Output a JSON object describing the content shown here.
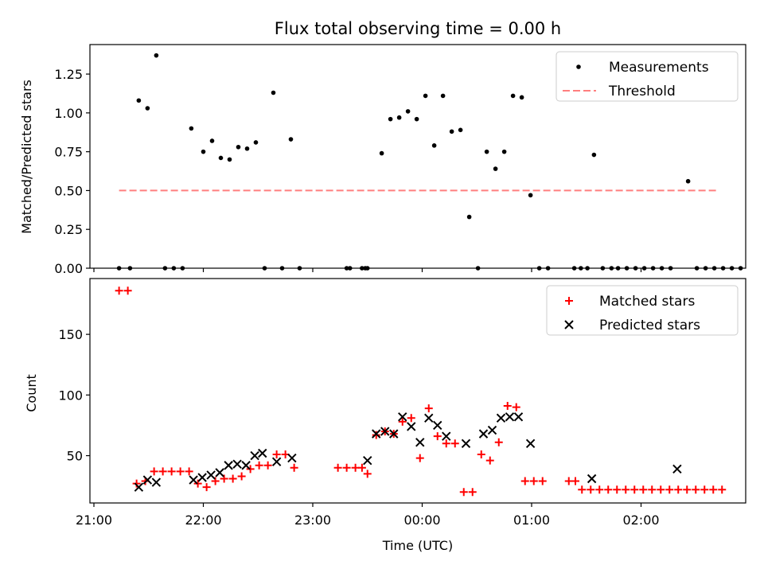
{
  "figure": {
    "title": "Flux total observing time = 0.00 h",
    "xlabel": "Time (UTC)",
    "x_ticks": [
      "21:00",
      "22:00",
      "23:00",
      "00:00",
      "01:00",
      "02:00"
    ]
  },
  "chart_data": [
    {
      "type": "scatter",
      "title": "Flux total observing time = 0.00 h",
      "ylabel": "Matched/Predicted stars",
      "x_unit": "hours since 21:00 UTC",
      "ylim": [
        0,
        1.44
      ],
      "y_ticks": [
        "0.00",
        "0.25",
        "0.50",
        "0.75",
        "1.00",
        "1.25"
      ],
      "legend": {
        "location": "upper right",
        "entries": [
          "Measurements",
          "Threshold"
        ]
      },
      "series": [
        {
          "name": "Measurements",
          "marker": "dot",
          "color": "#000000",
          "x": [
            0.23,
            0.33,
            0.41,
            0.49,
            0.57,
            0.65,
            0.73,
            0.81,
            0.89,
            1.0,
            1.08,
            1.16,
            1.24,
            1.32,
            1.4,
            1.48,
            1.56,
            1.64,
            1.72,
            1.8,
            1.88,
            2.31,
            2.34,
            2.45,
            2.48,
            2.5,
            2.63,
            2.71,
            2.79,
            2.87,
            2.95,
            3.03,
            3.11,
            3.19,
            3.27,
            3.35,
            3.43,
            3.51,
            3.59,
            3.67,
            3.75,
            3.83,
            3.91,
            3.99,
            4.07,
            4.15,
            4.39,
            4.45,
            4.51,
            4.57,
            4.65,
            4.73,
            4.79,
            4.87,
            4.95,
            5.03,
            5.11,
            5.19,
            5.27,
            5.43,
            5.51,
            5.59,
            5.67,
            5.75,
            5.83,
            5.91
          ],
          "y": [
            0.0,
            0.0,
            1.08,
            1.03,
            1.37,
            0.0,
            0.0,
            0.0,
            0.9,
            0.75,
            0.82,
            0.71,
            0.7,
            0.78,
            0.77,
            0.81,
            0.0,
            1.13,
            0.0,
            0.83,
            0.0,
            0.0,
            0.0,
            0.0,
            0.0,
            0.0,
            0.74,
            0.96,
            0.97,
            1.01,
            0.96,
            1.11,
            0.79,
            1.11,
            0.88,
            0.89,
            0.33,
            0.0,
            0.75,
            0.64,
            0.75,
            1.11,
            1.1,
            0.47,
            0.0,
            0.0,
            0.0,
            0.0,
            0.0,
            0.73,
            0.0,
            0.0,
            0.0,
            0.0,
            0.0,
            0.0,
            0.0,
            0.0,
            0.0,
            0.56,
            0.0,
            0.0,
            0.0,
            0.0,
            0.0,
            0.0
          ]
        },
        {
          "name": "Threshold",
          "marker": "dashed-line",
          "color": "#ff7f7f",
          "x": [
            0.23,
            5.7
          ],
          "y": [
            0.5,
            0.5
          ]
        }
      ]
    },
    {
      "type": "scatter",
      "ylabel": "Count",
      "xlabel": "Time (UTC)",
      "x_unit": "hours since 21:00 UTC",
      "ylim": [
        11,
        196
      ],
      "y_ticks": [
        "50",
        "100",
        "150"
      ],
      "legend": {
        "location": "upper right",
        "entries": [
          "Matched stars",
          "Predicted stars"
        ]
      },
      "series": [
        {
          "name": "Matched stars",
          "marker": "plus",
          "color": "#ff0000",
          "x": [
            0.23,
            0.31,
            0.39,
            0.47,
            0.55,
            0.63,
            0.71,
            0.79,
            0.87,
            0.95,
            1.03,
            1.11,
            1.19,
            1.27,
            1.35,
            1.43,
            1.51,
            1.59,
            1.67,
            1.75,
            1.83,
            2.23,
            2.31,
            2.39,
            2.45,
            2.5,
            2.58,
            2.66,
            2.74,
            2.82,
            2.9,
            2.98,
            3.06,
            3.14,
            3.22,
            3.3,
            3.38,
            3.46,
            3.54,
            3.62,
            3.7,
            3.78,
            3.86,
            3.94,
            4.02,
            4.1,
            4.34,
            4.4,
            4.46,
            4.54,
            4.62,
            4.7,
            4.78,
            4.86,
            4.94,
            5.02,
            5.1,
            5.18,
            5.26,
            5.34,
            5.42,
            5.5,
            5.58,
            5.66,
            5.74
          ],
          "y": [
            186,
            186,
            27,
            29,
            37,
            37,
            37,
            37,
            37,
            27,
            24,
            29,
            31,
            31,
            33,
            39,
            42,
            42,
            51,
            51,
            40,
            40,
            40,
            40,
            40,
            35,
            67,
            70,
            68,
            78,
            81,
            48,
            89,
            66,
            60,
            60,
            20,
            20,
            51,
            46,
            61,
            91,
            90,
            29,
            29,
            29,
            29,
            29,
            22,
            22,
            22,
            22,
            22,
            22,
            22,
            22,
            22,
            22,
            22,
            22,
            22,
            22,
            22,
            22,
            22
          ]
        },
        {
          "name": "Predicted stars",
          "marker": "x",
          "color": "#000000",
          "x": [
            0.41,
            0.49,
            0.57,
            0.91,
            0.99,
            1.07,
            1.15,
            1.23,
            1.31,
            1.39,
            1.47,
            1.54,
            1.67,
            1.81,
            2.5,
            2.58,
            2.66,
            2.74,
            2.82,
            2.9,
            2.98,
            3.06,
            3.14,
            3.22,
            3.4,
            3.56,
            3.64,
            3.72,
            3.8,
            3.88,
            3.99,
            4.55,
            5.33
          ],
          "y": [
            24,
            30,
            28,
            30,
            32,
            34,
            36,
            42,
            43,
            42,
            50,
            52,
            45,
            48,
            46,
            68,
            70,
            68,
            82,
            74,
            61,
            81,
            75,
            66,
            60,
            68,
            71,
            81,
            82,
            82,
            60,
            31,
            39
          ]
        }
      ]
    }
  ]
}
